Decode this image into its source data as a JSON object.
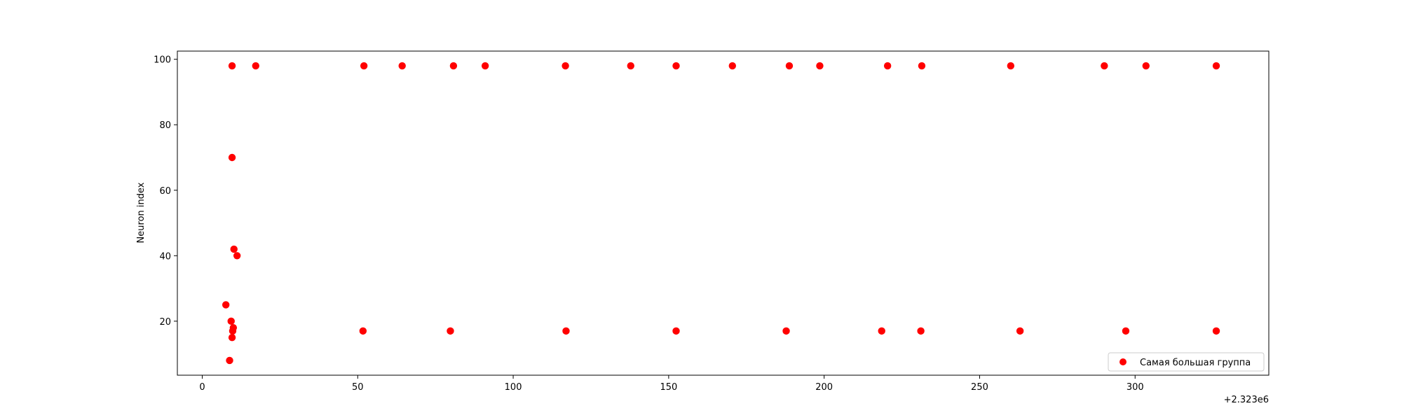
{
  "chart_data": {
    "type": "scatter",
    "title": "",
    "xlabel": "",
    "ylabel": "Neuron index",
    "x_offset_label": "+2.323e6",
    "xlim": [
      -8,
      343
    ],
    "ylim": [
      3.5,
      102.5
    ],
    "xticks": [
      0,
      50,
      100,
      150,
      200,
      250,
      300
    ],
    "yticks": [
      20,
      40,
      60,
      80,
      100
    ],
    "grid": false,
    "legend_position": "lower-right",
    "series": [
      {
        "name": "Самая большая группа",
        "color": "#ff0000",
        "points": [
          {
            "x": 9.6,
            "y": 98
          },
          {
            "x": 17.2,
            "y": 98
          },
          {
            "x": 52.0,
            "y": 98
          },
          {
            "x": 64.3,
            "y": 98
          },
          {
            "x": 80.8,
            "y": 98
          },
          {
            "x": 91.0,
            "y": 98
          },
          {
            "x": 116.8,
            "y": 98
          },
          {
            "x": 137.8,
            "y": 98
          },
          {
            "x": 152.4,
            "y": 98
          },
          {
            "x": 170.5,
            "y": 98
          },
          {
            "x": 188.8,
            "y": 98
          },
          {
            "x": 198.6,
            "y": 98
          },
          {
            "x": 220.4,
            "y": 98
          },
          {
            "x": 231.4,
            "y": 98
          },
          {
            "x": 260.0,
            "y": 98
          },
          {
            "x": 290.1,
            "y": 98
          },
          {
            "x": 303.5,
            "y": 98
          },
          {
            "x": 326.1,
            "y": 98
          },
          {
            "x": 9.6,
            "y": 70
          },
          {
            "x": 10.2,
            "y": 42
          },
          {
            "x": 11.2,
            "y": 40
          },
          {
            "x": 7.6,
            "y": 25
          },
          {
            "x": 9.3,
            "y": 20
          },
          {
            "x": 10.0,
            "y": 18
          },
          {
            "x": 9.8,
            "y": 17
          },
          {
            "x": 9.6,
            "y": 15
          },
          {
            "x": 8.8,
            "y": 8
          },
          {
            "x": 51.7,
            "y": 17
          },
          {
            "x": 79.8,
            "y": 17
          },
          {
            "x": 117.0,
            "y": 17
          },
          {
            "x": 152.4,
            "y": 17
          },
          {
            "x": 187.8,
            "y": 17
          },
          {
            "x": 218.5,
            "y": 17
          },
          {
            "x": 231.1,
            "y": 17
          },
          {
            "x": 263.0,
            "y": 17
          },
          {
            "x": 297.0,
            "y": 17
          },
          {
            "x": 326.1,
            "y": 17
          }
        ]
      }
    ]
  }
}
